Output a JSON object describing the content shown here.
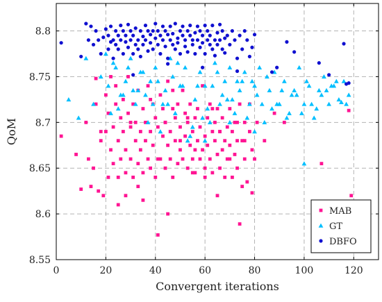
{
  "chart_data": {
    "type": "scatter",
    "title": "",
    "xlabel": "Convergent iterations",
    "ylabel": "QoM",
    "xlim": [
      0,
      130
    ],
    "ylim": [
      8.55,
      8.83
    ],
    "xticks": [
      0,
      20,
      40,
      60,
      80,
      100,
      120
    ],
    "yticks": [
      8.55,
      8.6,
      8.65,
      8.7,
      8.75,
      8.8
    ],
    "xtick_labels": [
      "0",
      "20",
      "40",
      "60",
      "80",
      "100",
      "120"
    ],
    "ytick_labels": [
      "8.55",
      "8.6",
      "8.65",
      "8.7",
      "8.75",
      "8.8"
    ],
    "grid": true,
    "legend_position": "bottom-right",
    "series": [
      {
        "name": "MAB",
        "marker": "square",
        "color": "#ff1493",
        "x": [
          2,
          8,
          10,
          12,
          13,
          14,
          15,
          16,
          17,
          18,
          19,
          20,
          20,
          21,
          21,
          22,
          22,
          23,
          23,
          24,
          25,
          25,
          26,
          26,
          27,
          27,
          28,
          28,
          29,
          29,
          30,
          30,
          31,
          31,
          32,
          32,
          33,
          33,
          34,
          34,
          35,
          35,
          36,
          36,
          37,
          37,
          38,
          38,
          39,
          39,
          40,
          40,
          41,
          41,
          42,
          42,
          43,
          43,
          44,
          44,
          45,
          45,
          46,
          46,
          47,
          47,
          48,
          48,
          49,
          49,
          50,
          50,
          51,
          51,
          52,
          52,
          53,
          53,
          54,
          54,
          55,
          55,
          56,
          56,
          57,
          57,
          58,
          58,
          59,
          59,
          60,
          60,
          61,
          61,
          62,
          62,
          63,
          63,
          64,
          64,
          65,
          65,
          66,
          66,
          67,
          67,
          68,
          68,
          69,
          69,
          70,
          70,
          71,
          71,
          72,
          72,
          73,
          73,
          74,
          74,
          75,
          76,
          76,
          77,
          78,
          78,
          79,
          80,
          81,
          84,
          88,
          92,
          107,
          118,
          119,
          16,
          18,
          24,
          28,
          30,
          33,
          38,
          41,
          44,
          47,
          50,
          53,
          56,
          60,
          63,
          66,
          70,
          73,
          76,
          79,
          25,
          35,
          45,
          55,
          65,
          75
        ],
        "y": [
          8.685,
          8.665,
          8.627,
          8.7,
          8.66,
          8.63,
          8.65,
          8.72,
          8.625,
          8.68,
          8.62,
          8.69,
          8.73,
          8.64,
          8.71,
          8.67,
          8.75,
          8.655,
          8.695,
          8.72,
          8.64,
          8.68,
          8.705,
          8.66,
          8.725,
          8.69,
          8.645,
          8.67,
          8.71,
          8.75,
          8.66,
          8.695,
          8.64,
          8.72,
          8.68,
          8.7,
          8.655,
          8.735,
          8.67,
          8.69,
          8.645,
          8.715,
          8.68,
          8.7,
          8.66,
          8.74,
          8.69,
          8.65,
          8.72,
          8.675,
          8.64,
          8.705,
          8.577,
          8.695,
          8.66,
          8.73,
          8.685,
          8.715,
          8.65,
          8.7,
          8.675,
          8.745,
          8.66,
          8.69,
          8.715,
          8.64,
          8.68,
          8.705,
          8.655,
          8.72,
          8.695,
          8.67,
          8.735,
          8.66,
          8.685,
          8.71,
          8.65,
          8.7,
          8.675,
          8.72,
          8.66,
          8.69,
          8.705,
          8.645,
          8.68,
          8.715,
          8.66,
          8.695,
          8.67,
          8.74,
          8.685,
          8.65,
          8.705,
          8.675,
          8.72,
          8.66,
          8.69,
          8.645,
          8.7,
          8.68,
          8.665,
          8.715,
          8.69,
          8.65,
          8.705,
          8.67,
          8.68,
          8.64,
          8.695,
          8.66,
          8.715,
          8.675,
          8.69,
          8.64,
          8.7,
          8.665,
          8.68,
          8.65,
          8.589,
          8.72,
          8.68,
          8.66,
          8.7,
          8.635,
          8.69,
          8.72,
          8.67,
          8.66,
          8.7,
          8.68,
          8.71,
          8.7,
          8.655,
          8.713,
          8.62,
          8.748,
          8.69,
          8.74,
          8.62,
          8.7,
          8.63,
          8.725,
          8.66,
          8.7,
          8.735,
          8.68,
          8.705,
          8.67,
          8.64,
          8.715,
          8.69,
          8.66,
          8.7,
          8.68,
          8.623,
          8.61,
          8.615,
          8.6,
          8.645,
          8.62,
          8.63
        ]
      },
      {
        "name": "GT",
        "marker": "triangle",
        "color": "#00bfff",
        "x": [
          5,
          9,
          12,
          15,
          18,
          20,
          22,
          24,
          26,
          28,
          30,
          32,
          34,
          36,
          38,
          40,
          42,
          44,
          46,
          48,
          50,
          52,
          54,
          56,
          58,
          60,
          62,
          64,
          66,
          68,
          70,
          72,
          74,
          76,
          78,
          80,
          82,
          84,
          86,
          88,
          90,
          92,
          94,
          96,
          98,
          100,
          102,
          104,
          106,
          108,
          110,
          112,
          114,
          116,
          118,
          21,
          25,
          29,
          33,
          37,
          41,
          45,
          49,
          53,
          57,
          61,
          65,
          69,
          73,
          77,
          81,
          85,
          89,
          93,
          97,
          101,
          105,
          109,
          113,
          117,
          23,
          31,
          39,
          47,
          55,
          63,
          71,
          79,
          87,
          95,
          103,
          111,
          27,
          35,
          43,
          51,
          59,
          67,
          75,
          83,
          91,
          99,
          107,
          115,
          50,
          60,
          70,
          80,
          90,
          100
        ],
        "y": [
          8.725,
          8.705,
          8.77,
          8.72,
          8.75,
          8.775,
          8.71,
          8.76,
          8.73,
          8.745,
          8.77,
          8.72,
          8.755,
          8.73,
          8.745,
          8.76,
          8.69,
          8.735,
          8.77,
          8.71,
          8.74,
          8.76,
          8.685,
          8.725,
          8.755,
          8.74,
          8.7,
          8.765,
          8.72,
          8.745,
          8.76,
          8.71,
          8.735,
          8.755,
          8.72,
          8.74,
          8.76,
          8.7,
          8.735,
          8.755,
          8.72,
          8.745,
          8.71,
          8.735,
          8.76,
          8.72,
          8.74,
          8.705,
          8.735,
          8.75,
          8.72,
          8.74,
          8.725,
          8.745,
          8.73,
          8.74,
          8.715,
          8.76,
          8.735,
          8.7,
          8.745,
          8.72,
          8.765,
          8.68,
          8.74,
          8.715,
          8.755,
          8.725,
          8.745,
          8.705,
          8.73,
          8.75,
          8.72,
          8.705,
          8.73,
          8.745,
          8.715,
          8.735,
          8.745,
          8.72,
          8.765,
          8.735,
          8.72,
          8.75,
          8.695,
          8.74,
          8.725,
          8.745,
          8.715,
          8.73,
          8.72,
          8.74,
          8.73,
          8.755,
          8.72,
          8.74,
          8.705,
          8.73,
          8.745,
          8.72,
          8.735,
          8.71,
          8.73,
          8.722,
          8.74,
          8.68,
          8.7,
          8.69,
          8.72,
          8.655
        ]
      },
      {
        "name": "DBFO",
        "marker": "circle",
        "color": "#1010d0",
        "x": [
          2,
          10,
          12,
          13,
          14,
          15,
          16,
          17,
          18,
          19,
          20,
          21,
          21,
          22,
          22,
          23,
          23,
          24,
          24,
          25,
          25,
          26,
          26,
          27,
          27,
          28,
          28,
          29,
          29,
          30,
          30,
          31,
          31,
          32,
          32,
          33,
          33,
          34,
          34,
          35,
          35,
          36,
          36,
          37,
          37,
          38,
          38,
          39,
          39,
          40,
          40,
          41,
          41,
          42,
          42,
          43,
          43,
          44,
          44,
          45,
          45,
          46,
          46,
          47,
          47,
          48,
          48,
          49,
          49,
          50,
          50,
          51,
          51,
          52,
          52,
          53,
          53,
          54,
          54,
          55,
          55,
          56,
          56,
          57,
          57,
          58,
          58,
          59,
          59,
          60,
          60,
          61,
          61,
          62,
          62,
          63,
          63,
          64,
          64,
          65,
          65,
          66,
          66,
          67,
          67,
          68,
          68,
          69,
          70,
          71,
          72,
          73,
          74,
          75,
          76,
          77,
          78,
          79,
          80,
          87,
          89,
          93,
          96,
          106,
          110,
          116,
          117,
          118,
          31,
          45,
          59,
          73
        ],
        "y": [
          8.787,
          8.772,
          8.808,
          8.79,
          8.805,
          8.785,
          8.8,
          8.79,
          8.775,
          8.793,
          8.802,
          8.78,
          8.795,
          8.788,
          8.805,
          8.77,
          8.79,
          8.8,
          8.785,
          8.795,
          8.78,
          8.806,
          8.79,
          8.775,
          8.8,
          8.788,
          8.795,
          8.807,
          8.782,
          8.79,
          8.8,
          8.775,
          8.795,
          8.785,
          8.803,
          8.79,
          8.78,
          8.8,
          8.772,
          8.794,
          8.785,
          8.806,
          8.79,
          8.778,
          8.8,
          8.787,
          8.796,
          8.8,
          8.78,
          8.792,
          8.808,
          8.785,
          8.8,
          8.795,
          8.775,
          8.805,
          8.79,
          8.783,
          8.8,
          8.796,
          8.77,
          8.79,
          8.805,
          8.785,
          8.797,
          8.78,
          8.808,
          8.792,
          8.787,
          8.8,
          8.775,
          8.795,
          8.805,
          8.783,
          8.79,
          8.8,
          8.777,
          8.795,
          8.806,
          8.785,
          8.79,
          8.798,
          8.775,
          8.805,
          8.79,
          8.782,
          8.8,
          8.795,
          8.787,
          8.806,
          8.775,
          8.79,
          8.8,
          8.785,
          8.795,
          8.78,
          8.806,
          8.79,
          8.773,
          8.798,
          8.785,
          8.807,
          8.79,
          8.78,
          8.8,
          8.792,
          8.776,
          8.795,
          8.785,
          8.8,
          8.79,
          8.77,
          8.795,
          8.78,
          8.8,
          8.79,
          8.772,
          8.782,
          8.796,
          8.755,
          8.76,
          8.788,
          8.777,
          8.765,
          8.752,
          8.786,
          8.742,
          8.743,
          8.752,
          8.764,
          8.76,
          8.756
        ]
      }
    ]
  }
}
